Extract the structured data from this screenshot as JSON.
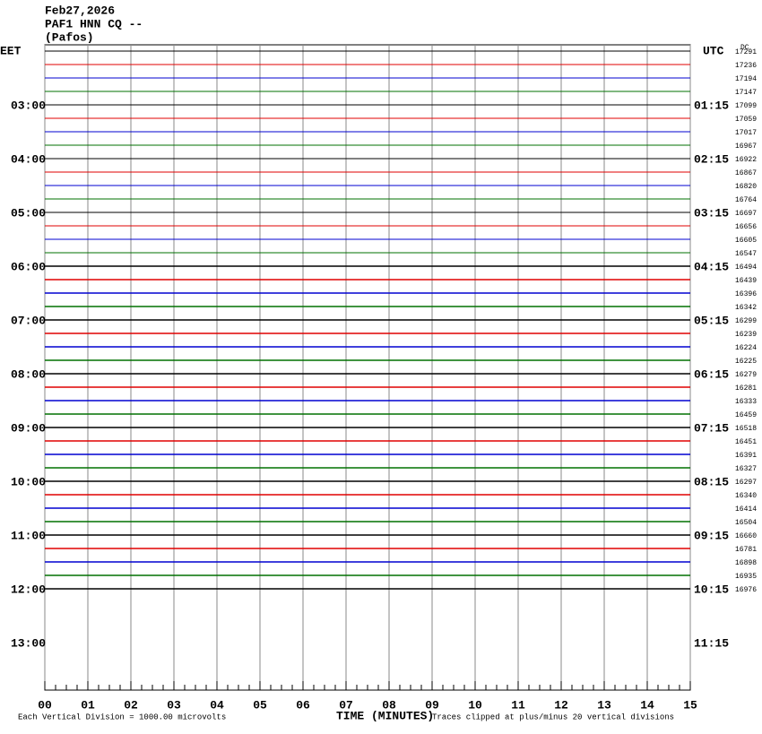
{
  "header": {
    "date": "Feb27,2026",
    "station": "PAF1 HNN CQ --",
    "location": "(Pafos)"
  },
  "left_axis": {
    "title": "EET",
    "labels": [
      "03:00",
      "04:00",
      "05:00",
      "06:00",
      "07:00",
      "08:00",
      "09:00",
      "10:00",
      "11:00",
      "12:00",
      "13:00"
    ]
  },
  "right_axis": {
    "title": "UTC",
    "labels": [
      "01:15",
      "02:15",
      "03:15",
      "04:15",
      "05:15",
      "06:15",
      "07:15",
      "08:15",
      "09:15",
      "10:15",
      "11:15"
    ]
  },
  "dc": {
    "title": "DC",
    "values": [
      "17291",
      "17236",
      "17194",
      "17147",
      "17099",
      "17059",
      "17017",
      "16967",
      "16922",
      "16867",
      "16820",
      "16764",
      "16697",
      "16656",
      "16605",
      "16547",
      "16494",
      "16439",
      "16396",
      "16342",
      "16299",
      "16239",
      "16224",
      "16225",
      "16279",
      "16281",
      "16333",
      "16459",
      "16518",
      "16451",
      "16391",
      "16327",
      "16297",
      "16340",
      "16414",
      "16504",
      "16660",
      "16781",
      "16898",
      "16935",
      "16976"
    ]
  },
  "x_axis": {
    "title": "TIME (MINUTES)",
    "labels": [
      "00",
      "01",
      "02",
      "03",
      "04",
      "05",
      "06",
      "07",
      "08",
      "09",
      "10",
      "11",
      "12",
      "13",
      "14",
      "15"
    ]
  },
  "footer": {
    "scale": "Each Vertical Division = 1000.00 microvolts",
    "clip": "Traces clipped at plus/minus 20 vertical divisions"
  }
}
